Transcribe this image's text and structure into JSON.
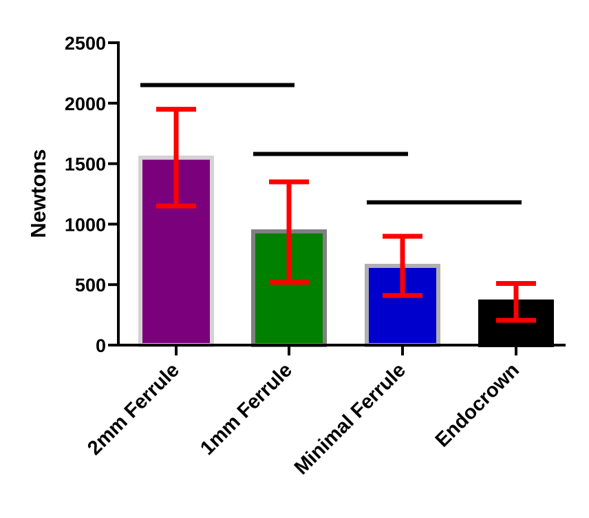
{
  "chart_data": {
    "type": "bar",
    "title": "",
    "xlabel": "",
    "ylabel": "Newtons",
    "ylim": [
      0,
      2500
    ],
    "y_ticks": [
      0,
      500,
      1000,
      1500,
      2000,
      2500
    ],
    "y_tick_labels": [
      "0",
      "500",
      "1000",
      "1500",
      "2000",
      "2500"
    ],
    "categories": [
      "2mm Ferrule",
      "1mm Ferrule",
      "Minimal Ferrule",
      "Endocrown"
    ],
    "values": [
      1550,
      940,
      655,
      360
    ],
    "error_low": [
      1150,
      520,
      410,
      205
    ],
    "error_high": [
      1950,
      1350,
      900,
      510
    ],
    "bar_colors": [
      "#7b007b",
      "#008000",
      "#0000cc",
      "#000000"
    ],
    "bar_border_colors": [
      "#d3d3d3",
      "#808080",
      "#b0b0b0",
      "#000000"
    ],
    "error_bar_color": "#ff0000",
    "significance_lines": [
      {
        "from_category": "2mm Ferrule",
        "to_category": "1mm Ferrule",
        "y": 2150
      },
      {
        "from_category": "1mm Ferrule",
        "to_category": "Minimal Ferrule",
        "y": 1580
      },
      {
        "from_category": "Minimal Ferrule",
        "to_category": "Endocrown",
        "y": 1180
      }
    ],
    "grid": false,
    "legend": "none"
  }
}
